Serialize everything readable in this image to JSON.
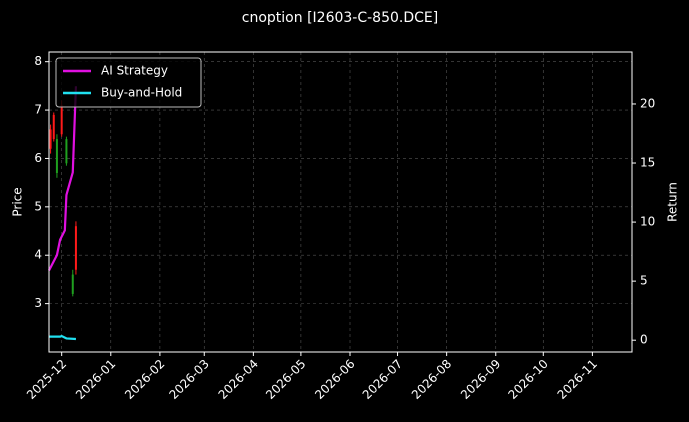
{
  "chart_data": {
    "type": "candlestick",
    "title": "cnoption [I2603-C-850.DCE]",
    "y_label": "Price",
    "y2_label": "Return",
    "xlim": [
      "2025-11-23",
      "2026-11-26"
    ],
    "xticks": [
      {
        "value": "2025-12-01",
        "label": "2025-12"
      },
      {
        "value": "2026-01-01",
        "label": "2026-01"
      },
      {
        "value": "2026-02-01",
        "label": "2026-02"
      },
      {
        "value": "2026-03-01",
        "label": "2026-03"
      },
      {
        "value": "2026-04-01",
        "label": "2026-04"
      },
      {
        "value": "2026-05-01",
        "label": "2026-05"
      },
      {
        "value": "2026-06-01",
        "label": "2026-06"
      },
      {
        "value": "2026-07-01",
        "label": "2026-07"
      },
      {
        "value": "2026-08-01",
        "label": "2026-08"
      },
      {
        "value": "2026-09-01",
        "label": "2026-09"
      },
      {
        "value": "2026-10-01",
        "label": "2026-10"
      },
      {
        "value": "2026-11-01",
        "label": "2026-11"
      }
    ],
    "ylim": [
      2.0,
      8.2
    ],
    "yticks": [
      3,
      4,
      5,
      6,
      7,
      8
    ],
    "y2lim": [
      -1.0,
      24.4
    ],
    "y2ticks": [
      0,
      5,
      10,
      15,
      20
    ],
    "grid": true,
    "legend": "upper left",
    "up_color": "#1fa01f",
    "down_color": "#ff1a1a",
    "candles": {
      "x": [
        "2025-11-24",
        "2025-11-26",
        "2025-11-28",
        "2025-12-01",
        "2025-12-04",
        "2025-12-08",
        "2025-12-10"
      ],
      "open": [
        6.6,
        6.9,
        5.7,
        7.1,
        5.9,
        3.2,
        4.6
      ],
      "high": [
        6.7,
        6.95,
        6.5,
        7.2,
        6.45,
        3.7,
        4.7
      ],
      "low": [
        6.1,
        6.35,
        5.6,
        6.45,
        5.85,
        3.15,
        3.6
      ],
      "close": [
        6.2,
        6.4,
        6.4,
        6.5,
        6.4,
        3.6,
        3.7
      ]
    },
    "series": [
      {
        "name": "AI Strategy",
        "color": "#e010e0",
        "axis": "y2",
        "x": [
          "2025-11-23",
          "2025-11-28",
          "2025-11-30",
          "2025-12-03",
          "2025-12-04",
          "2025-12-08",
          "2025-12-10"
        ],
        "values": [
          5.9,
          7.2,
          8.5,
          9.3,
          12.3,
          14.2,
          21.5
        ]
      },
      {
        "name": "Buy-and-Hold",
        "color": "#20e0f0",
        "axis": "y2",
        "x": [
          "2025-11-23",
          "2025-11-30",
          "2025-12-01",
          "2025-12-04",
          "2025-12-10"
        ],
        "values": [
          0.3,
          0.3,
          0.35,
          0.15,
          0.1
        ]
      }
    ]
  }
}
